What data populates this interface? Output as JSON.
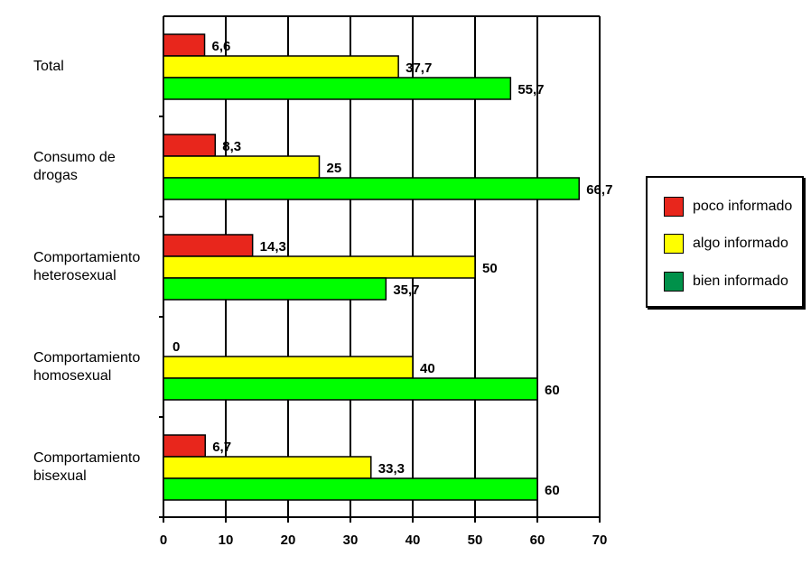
{
  "chart_data": {
    "type": "bar",
    "orientation": "horizontal",
    "categories": [
      [
        "Total"
      ],
      [
        "Consumo de",
        "drogas"
      ],
      [
        "Comportamiento",
        "heterosexual"
      ],
      [
        "Comportamiento",
        "homosexual"
      ],
      [
        "Comportamiento",
        "bisexual"
      ]
    ],
    "series": [
      {
        "name": "poco informado",
        "color": "#e8261c",
        "values": [
          6.6,
          8.3,
          14.3,
          0,
          6.7
        ],
        "labels": [
          "6,6",
          "8,3",
          "14,3",
          "0",
          "6,7"
        ]
      },
      {
        "name": "algo informado",
        "color": "#ffff00",
        "values": [
          37.7,
          25,
          50,
          40,
          33.3
        ],
        "labels": [
          "37,7",
          "25",
          "50",
          "40",
          "33,3"
        ]
      },
      {
        "name": "bien informado",
        "color": "#00ff00",
        "values": [
          55.7,
          66.7,
          35.7,
          60,
          60
        ],
        "labels": [
          "55,7",
          "66,7",
          "35,7",
          "60",
          "60"
        ]
      }
    ],
    "xlim": [
      0,
      70
    ],
    "xticks": [
      0,
      10,
      20,
      30,
      40,
      50,
      60,
      70
    ],
    "grid": true,
    "legend_position": "right",
    "legend_colors": [
      "#e8261c",
      "#ffff00",
      "#00914a"
    ],
    "title": "",
    "xlabel": "",
    "ylabel": ""
  }
}
